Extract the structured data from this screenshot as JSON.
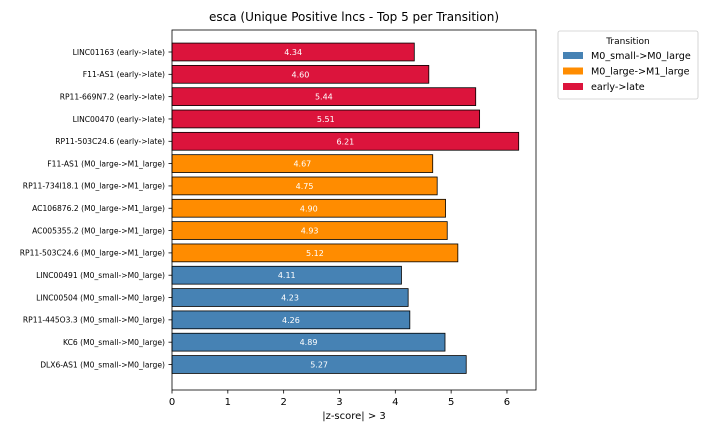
{
  "chart_data": {
    "type": "bar",
    "orientation": "horizontal",
    "title": "esca (Unique Positive lncs - Top 5 per Transition)",
    "xlabel": "|z-score| > 3",
    "ylabel": "",
    "xlim": [
      0,
      6.52
    ],
    "xticks": [
      0,
      1,
      2,
      3,
      4,
      5,
      6
    ],
    "grid": false,
    "legend": {
      "title": "Transition",
      "placement": "outside-right-top",
      "entries": [
        {
          "name": "M0_small->M0_large",
          "color": "#4682b4"
        },
        {
          "name": "M0_large->M1_large",
          "color": "#ff8c00"
        },
        {
          "name": "early->late",
          "color": "#dc143c"
        }
      ]
    },
    "bars": [
      {
        "label": "LINC01163 (early->late)",
        "value": 4.34,
        "value_label": "4.34",
        "group": "early->late"
      },
      {
        "label": "F11-AS1 (early->late)",
        "value": 4.6,
        "value_label": "4.60",
        "group": "early->late"
      },
      {
        "label": "RP11-669N7.2 (early->late)",
        "value": 5.44,
        "value_label": "5.44",
        "group": "early->late"
      },
      {
        "label": "LINC00470 (early->late)",
        "value": 5.51,
        "value_label": "5.51",
        "group": "early->late"
      },
      {
        "label": "RP11-503C24.6 (early->late)",
        "value": 6.21,
        "value_label": "6.21",
        "group": "early->late"
      },
      {
        "label": "F11-AS1 (M0_large->M1_large)",
        "value": 4.67,
        "value_label": "4.67",
        "group": "M0_large->M1_large"
      },
      {
        "label": "RP11-734I18.1 (M0_large->M1_large)",
        "value": 4.75,
        "value_label": "4.75",
        "group": "M0_large->M1_large"
      },
      {
        "label": "AC106876.2 (M0_large->M1_large)",
        "value": 4.9,
        "value_label": "4.90",
        "group": "M0_large->M1_large"
      },
      {
        "label": "AC005355.2 (M0_large->M1_large)",
        "value": 4.93,
        "value_label": "4.93",
        "group": "M0_large->M1_large"
      },
      {
        "label": "RP11-503C24.6 (M0_large->M1_large)",
        "value": 5.12,
        "value_label": "5.12",
        "group": "M0_large->M1_large"
      },
      {
        "label": "LINC00491 (M0_small->M0_large)",
        "value": 4.11,
        "value_label": "4.11",
        "group": "M0_small->M0_large"
      },
      {
        "label": "LINC00504 (M0_small->M0_large)",
        "value": 4.23,
        "value_label": "4.23",
        "group": "M0_small->M0_large"
      },
      {
        "label": "RP11-445O3.3 (M0_small->M0_large)",
        "value": 4.26,
        "value_label": "4.26",
        "group": "M0_small->M0_large"
      },
      {
        "label": "KC6 (M0_small->M0_large)",
        "value": 4.89,
        "value_label": "4.89",
        "group": "M0_small->M0_large"
      },
      {
        "label": "DLX6-AS1 (M0_small->M0_large)",
        "value": 5.27,
        "value_label": "5.27",
        "group": "M0_small->M0_large"
      }
    ]
  }
}
